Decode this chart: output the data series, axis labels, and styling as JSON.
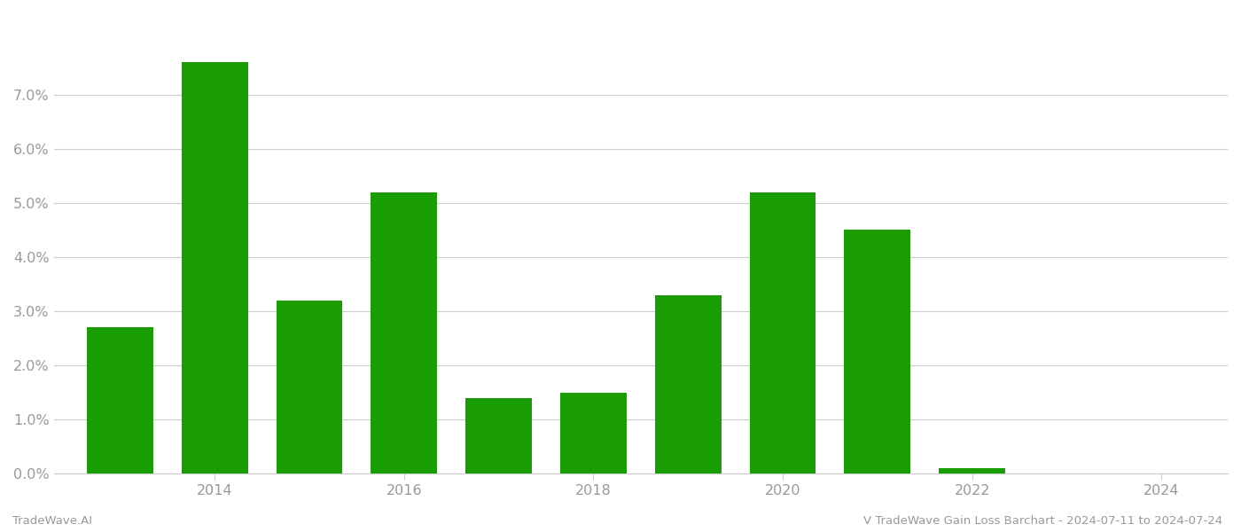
{
  "years": [
    2013,
    2014,
    2015,
    2016,
    2017,
    2018,
    2019,
    2020,
    2021,
    2022,
    2023
  ],
  "values": [
    0.027,
    0.076,
    0.032,
    0.052,
    0.014,
    0.015,
    0.033,
    0.052,
    0.045,
    0.001,
    0.0
  ],
  "bar_color": "#1a9c04",
  "background_color": "#ffffff",
  "grid_color": "#cccccc",
  "title": "V TradeWave Gain Loss Barchart - 2024-07-11 to 2024-07-24",
  "footer_left": "TradeWave.AI",
  "ylim": [
    0,
    0.085
  ],
  "yticks": [
    0.0,
    0.01,
    0.02,
    0.03,
    0.04,
    0.05,
    0.06,
    0.07
  ],
  "xtick_years": [
    2014,
    2016,
    2018,
    2020,
    2022,
    2024
  ],
  "bar_width": 0.7,
  "tick_label_color": "#999999",
  "title_color": "#999999",
  "footer_color": "#999999",
  "xlim_left": 2012.3,
  "xlim_right": 2024.7
}
